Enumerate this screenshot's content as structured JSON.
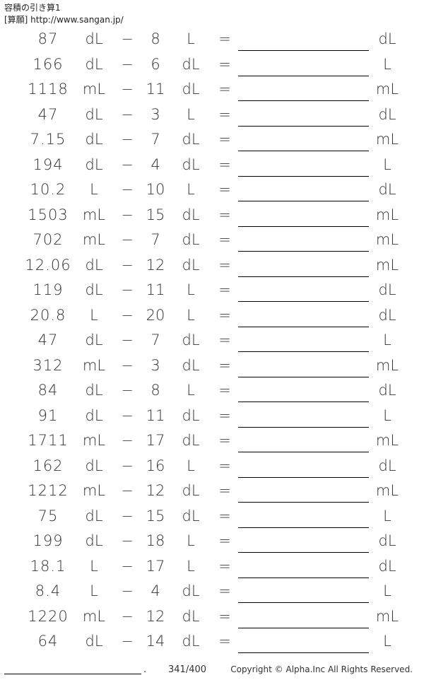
{
  "header": {
    "title": "容積の引き算1",
    "source": "[算願] http://www.sangan.jp/"
  },
  "operator": "−",
  "equals": "=",
  "problems": [
    [
      "87",
      "dL",
      "8",
      "L",
      "dL"
    ],
    [
      "166",
      "dL",
      "6",
      "dL",
      "L"
    ],
    [
      "1118",
      "mL",
      "11",
      "dL",
      "mL"
    ],
    [
      "47",
      "dL",
      "3",
      "L",
      "dL"
    ],
    [
      "7.15",
      "dL",
      "7",
      "dL",
      "mL"
    ],
    [
      "194",
      "dL",
      "4",
      "dL",
      "L"
    ],
    [
      "10.2",
      "L",
      "10",
      "L",
      "dL"
    ],
    [
      "1503",
      "mL",
      "15",
      "dL",
      "mL"
    ],
    [
      "702",
      "mL",
      "7",
      "dL",
      "mL"
    ],
    [
      "12.06",
      "dL",
      "12",
      "dL",
      "mL"
    ],
    [
      "119",
      "dL",
      "11",
      "L",
      "dL"
    ],
    [
      "20.8",
      "L",
      "20",
      "L",
      "dL"
    ],
    [
      "47",
      "dL",
      "7",
      "dL",
      "L"
    ],
    [
      "312",
      "mL",
      "3",
      "dL",
      "mL"
    ],
    [
      "84",
      "dL",
      "8",
      "L",
      "dL"
    ],
    [
      "91",
      "dL",
      "11",
      "dL",
      "L"
    ],
    [
      "1711",
      "mL",
      "17",
      "dL",
      "mL"
    ],
    [
      "162",
      "dL",
      "16",
      "L",
      "dL"
    ],
    [
      "1212",
      "mL",
      "12",
      "dL",
      "mL"
    ],
    [
      "75",
      "dL",
      "15",
      "dL",
      "L"
    ],
    [
      "199",
      "dL",
      "18",
      "L",
      "dL"
    ],
    [
      "18.1",
      "L",
      "17",
      "L",
      "dL"
    ],
    [
      "8.4",
      "L",
      "4",
      "dL",
      "L"
    ],
    [
      "1220",
      "mL",
      "12",
      "dL",
      "mL"
    ],
    [
      "64",
      "dL",
      "14",
      "dL",
      "L"
    ]
  ],
  "footer": {
    "dot": ".",
    "page": "341/400",
    "copyright": "Copyright © Alpha.Inc All Rights Reserved."
  }
}
